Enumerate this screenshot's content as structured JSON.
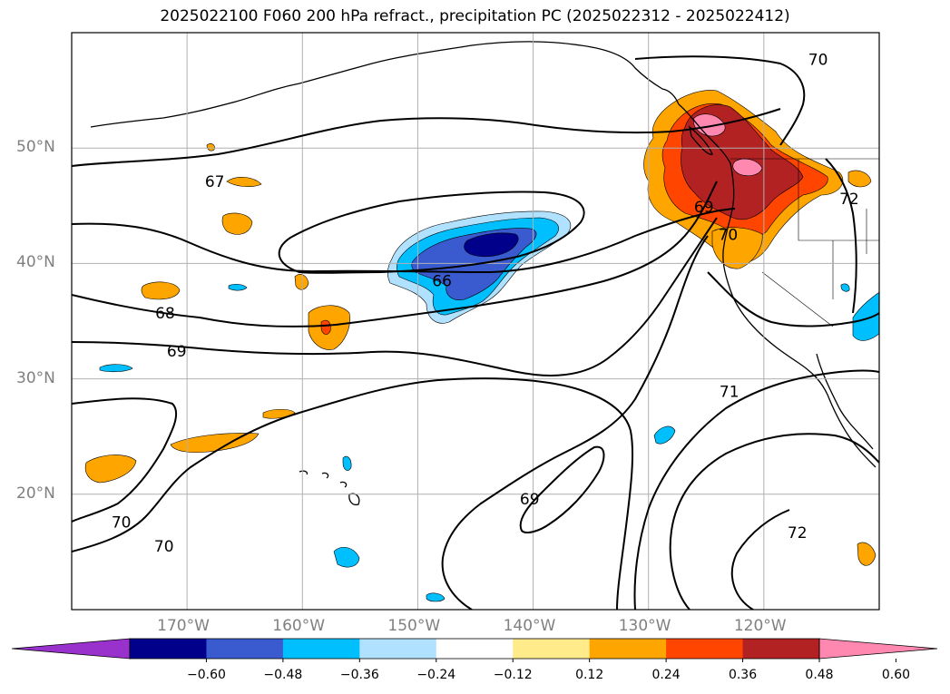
{
  "title": "2025022100 F060 200 hPa refract., precipitation PC (2025022312 - 2025022412)",
  "map": {
    "lon_range": [
      -180,
      -110
    ],
    "lat_range": [
      10,
      60
    ],
    "lat_ticks": [
      {
        "value": 20,
        "label": "20°N"
      },
      {
        "value": 30,
        "label": "30°N"
      },
      {
        "value": 40,
        "label": "40°N"
      },
      {
        "value": 50,
        "label": "50°N"
      }
    ],
    "lon_ticks": [
      {
        "value": -170,
        "label": "170°W"
      },
      {
        "value": -160,
        "label": "160°W"
      },
      {
        "value": -150,
        "label": "150°W"
      },
      {
        "value": -140,
        "label": "140°W"
      },
      {
        "value": -130,
        "label": "130°W"
      },
      {
        "value": -120,
        "label": "120°W"
      }
    ],
    "grid": true
  },
  "chart_data": {
    "type": "heatmap",
    "title": "2025022100 F060 200 hPa refract., precipitation PC (2025022312 - 2025022412)",
    "contour_labels": [
      "66",
      "67",
      "68",
      "69",
      "70",
      "71",
      "72"
    ],
    "contour_label_positions": [
      {
        "text": "67",
        "lon": -167.6,
        "lat": 47.1
      },
      {
        "text": "66",
        "lon": -147.9,
        "lat": 38.5
      },
      {
        "text": "68",
        "lon": -171.9,
        "lat": 35.7
      },
      {
        "text": "69",
        "lon": -170.9,
        "lat": 32.4
      },
      {
        "text": "70",
        "lon": -175.7,
        "lat": 17.6
      },
      {
        "text": "70",
        "lon": -172.0,
        "lat": 15.5
      },
      {
        "text": "69",
        "lon": -140.3,
        "lat": 19.6
      },
      {
        "text": "71",
        "lon": -123.0,
        "lat": 28.9
      },
      {
        "text": "72",
        "lon": -117.1,
        "lat": 16.7
      },
      {
        "text": "70",
        "lon": -123.1,
        "lat": 42.5
      },
      {
        "text": "69",
        "lon": -125.2,
        "lat": 44.9
      },
      {
        "text": "70",
        "lon": -115.3,
        "lat": 57.7
      },
      {
        "text": "72",
        "lon": -112.6,
        "lat": 45.6
      }
    ],
    "colorbar": {
      "ticks": [
        "−0.60",
        "−0.48",
        "−0.36",
        "−0.24",
        "−0.12",
        "0.12",
        "0.24",
        "0.36",
        "0.48",
        "0.60"
      ],
      "bounds": [
        -0.6,
        -0.48,
        -0.36,
        -0.24,
        -0.12,
        0.12,
        0.24,
        0.36,
        0.48,
        0.6
      ],
      "colors": [
        "#9932cc",
        "#00008b",
        "#3a5bcf",
        "#00bfff",
        "#b0e2ff",
        "#ffffff",
        "#ffeb8a",
        "#ffa500",
        "#ff4500",
        "#b22222",
        "#ff88b0"
      ],
      "extend": "both"
    }
  }
}
